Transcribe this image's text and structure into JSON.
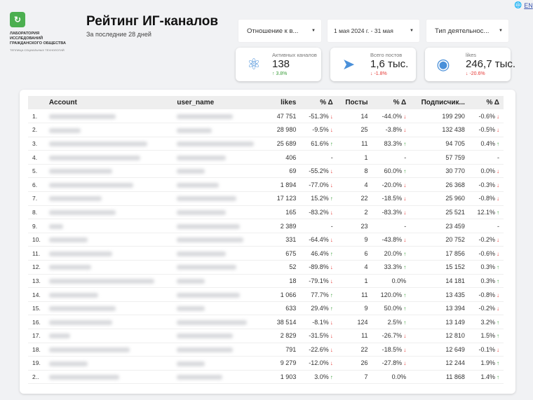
{
  "logo": {
    "lines": [
      "ЛАБОРАТОРИЯ",
      "ИССЛЕДОВАНИЙ",
      "ГРАЖДАНСКОГО ОБЩЕСТВА"
    ],
    "sub": "ТЕПЛИЦА СОЦИАЛЬНЫХ ТЕХНОЛОГИЙ"
  },
  "header": {
    "title": "Рейтинг ИГ-каналов",
    "subtitle": "За последние 28 дней",
    "lang": "EN"
  },
  "filters": [
    {
      "label": "Отношение к в..."
    },
    {
      "label": "1 мая 2024 г. - 31 мая"
    },
    {
      "label": "Тип деятельнос..."
    }
  ],
  "kpis": [
    {
      "icon": "network-icon",
      "label": "Активных каналов",
      "value": "138",
      "delta": "3.8%",
      "dir": "up"
    },
    {
      "icon": "paper-plane-icon",
      "label": "Всего постов",
      "value": "1,6 тыс.",
      "delta": "-1.8%",
      "dir": "down"
    },
    {
      "icon": "eye-icon",
      "label": "likes",
      "value": "246,7 тыс.",
      "delta": "-20.6%",
      "dir": "down"
    }
  ],
  "colors": {
    "up": "#3a9d3a",
    "down": "#e53935",
    "accent": "#4a90d9"
  },
  "table": {
    "headers": [
      "Account",
      "user_name",
      "likes",
      "% Δ",
      "Посты",
      "% Δ",
      "Подписчик...",
      "% Δ"
    ],
    "rows": [
      [
        "1.",
        "47 751",
        "-51.3%",
        "down",
        "14",
        "-44.0%",
        "down",
        "199 290",
        "-0.6%",
        "down"
      ],
      [
        "2.",
        "28 980",
        "-9.5%",
        "down",
        "25",
        "-3.8%",
        "down",
        "132 438",
        "-0.5%",
        "down"
      ],
      [
        "3.",
        "25 689",
        "61.6%",
        "up",
        "11",
        "83.3%",
        "up",
        "94 705",
        "0.4%",
        "up"
      ],
      [
        "4.",
        "406",
        "-",
        "",
        "1",
        "-",
        "",
        "57 759",
        "-",
        ""
      ],
      [
        "5.",
        "69",
        "-55.2%",
        "down",
        "8",
        "60.0%",
        "up",
        "30 770",
        "0.0%",
        "down"
      ],
      [
        "6.",
        "1 894",
        "-77.0%",
        "down",
        "4",
        "-20.0%",
        "down",
        "26 368",
        "-0.3%",
        "down"
      ],
      [
        "7.",
        "17 123",
        "15.2%",
        "up",
        "22",
        "-18.5%",
        "down",
        "25 960",
        "-0.8%",
        "down"
      ],
      [
        "8.",
        "165",
        "-83.2%",
        "down",
        "2",
        "-83.3%",
        "down",
        "25 521",
        "12.1%",
        "up"
      ],
      [
        "9.",
        "2 389",
        "-",
        "",
        "23",
        "-",
        "",
        "23 459",
        "-",
        ""
      ],
      [
        "10.",
        "331",
        "-64.4%",
        "down",
        "9",
        "-43.8%",
        "down",
        "20 752",
        "-0.2%",
        "down"
      ],
      [
        "11.",
        "675",
        "46.4%",
        "up",
        "6",
        "20.0%",
        "up",
        "17 856",
        "-0.6%",
        "down"
      ],
      [
        "12.",
        "52",
        "-89.8%",
        "down",
        "4",
        "33.3%",
        "up",
        "15 152",
        "0.3%",
        "up"
      ],
      [
        "13.",
        "18",
        "-79.1%",
        "down",
        "1",
        "0.0%",
        "",
        "14 181",
        "0.3%",
        "up"
      ],
      [
        "14.",
        "1 066",
        "77.7%",
        "up",
        "11",
        "120.0%",
        "up",
        "13 435",
        "-0.8%",
        "down"
      ],
      [
        "15.",
        "633",
        "29.4%",
        "up",
        "9",
        "50.0%",
        "up",
        "13 394",
        "-0.2%",
        "down"
      ],
      [
        "16.",
        "38 514",
        "-8.1%",
        "down",
        "124",
        "2.5%",
        "up",
        "13 149",
        "3.2%",
        "up"
      ],
      [
        "17.",
        "2 829",
        "-31.5%",
        "down",
        "11",
        "-26.7%",
        "down",
        "12 810",
        "1.5%",
        "up"
      ],
      [
        "18.",
        "791",
        "-22.6%",
        "down",
        "22",
        "-18.5%",
        "down",
        "12 649",
        "-0.1%",
        "down"
      ],
      [
        "19.",
        "9 279",
        "-12.0%",
        "down",
        "26",
        "-27.8%",
        "down",
        "12 244",
        "1.9%",
        "up"
      ],
      [
        "2..",
        "1 903",
        "3.0%",
        "up",
        "7",
        "0.0%",
        "",
        "11 868",
        "1.4%",
        "up"
      ]
    ]
  }
}
